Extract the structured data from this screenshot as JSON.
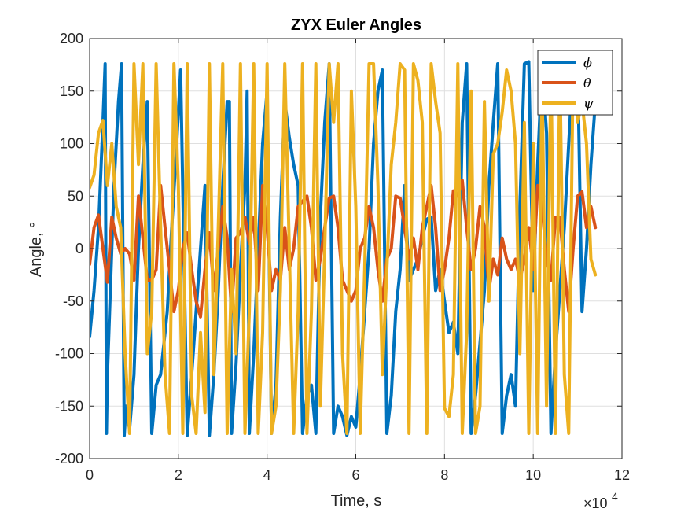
{
  "chart_data": {
    "type": "line",
    "title": "ZYX Euler Angles",
    "xlabel": "Time, s",
    "ylabel": "Angle, °",
    "x_exponent_base": "×10",
    "x_exponent_power": "4",
    "xlim": [
      0,
      12
    ],
    "ylim": [
      -200,
      200
    ],
    "xticks": [
      0,
      2,
      4,
      6,
      8,
      10,
      12
    ],
    "yticks": [
      -200,
      -150,
      -100,
      -50,
      0,
      50,
      100,
      150,
      200
    ],
    "grid": true,
    "legend_position": "top-right",
    "series": [
      {
        "name": "ϕ",
        "color": "#0072BD",
        "x": [
          0,
          0.1,
          0.2,
          0.3,
          0.35,
          0.38,
          0.4,
          0.55,
          0.65,
          0.72,
          0.78,
          0.82,
          0.9,
          1.0,
          1.05,
          1.1,
          1.2,
          1.3,
          1.4,
          1.5,
          1.6,
          1.75,
          1.85,
          1.95,
          2.05,
          2.2,
          2.3,
          2.4,
          2.5,
          2.6,
          2.7,
          2.8,
          2.9,
          3.0,
          3.1,
          3.15,
          3.2,
          3.3,
          3.4,
          3.5,
          3.55,
          3.6,
          3.7,
          3.8,
          3.9,
          4.0,
          4.1,
          4.2,
          4.3,
          4.4,
          4.5,
          4.6,
          4.7,
          4.8,
          4.9,
          5.0,
          5.1,
          5.2,
          5.3,
          5.4,
          5.5,
          5.6,
          5.7,
          5.8,
          5.9,
          6.0,
          6.1,
          6.2,
          6.3,
          6.4,
          6.5,
          6.6,
          6.7,
          6.8,
          6.9,
          7.0,
          7.1,
          7.2,
          7.3,
          7.4,
          7.5,
          7.6,
          7.7,
          7.8,
          7.9,
          8.0,
          8.1,
          8.2,
          8.3,
          8.4,
          8.5,
          8.6,
          8.7,
          8.8,
          8.9,
          9.0,
          9.1,
          9.2,
          9.3,
          9.4,
          9.5,
          9.6,
          9.7,
          9.8,
          9.9,
          10.0,
          10.1,
          10.2,
          10.3,
          10.4,
          10.5,
          10.6,
          10.7,
          10.8,
          10.9,
          11.0,
          11.1,
          11.2,
          11.3,
          11.4
        ],
        "y": [
          -84,
          -40,
          20,
          120,
          176,
          -176,
          -120,
          60,
          140,
          176,
          -178,
          -150,
          -172,
          -120,
          -60,
          0,
          80,
          140,
          -176,
          -130,
          -120,
          -60,
          20,
          90,
          170,
          -178,
          -120,
          -60,
          0,
          60,
          -178,
          -120,
          -40,
          60,
          140,
          140,
          -176,
          -110,
          -20,
          60,
          150,
          -176,
          -100,
          0,
          100,
          150,
          -176,
          -130,
          30,
          140,
          106,
          80,
          60,
          -176,
          -140,
          -130,
          -176,
          30,
          120,
          176,
          -176,
          -150,
          -160,
          -178,
          -160,
          -170,
          -120,
          -60,
          0,
          100,
          150,
          170,
          -176,
          -140,
          -60,
          -20,
          60,
          -30,
          -20,
          -10,
          10,
          28,
          30,
          -40,
          -20,
          -50,
          -80,
          -70,
          -100,
          120,
          176,
          -176,
          -140,
          -90,
          -40,
          60,
          120,
          176,
          -176,
          -140,
          -120,
          -150,
          40,
          176,
          178,
          -40,
          80,
          176,
          110,
          -176,
          -100,
          -40,
          20,
          100,
          176,
          178,
          -60,
          0,
          80,
          140
        ]
      },
      {
        "name": "θ",
        "color": "#D95319",
        "x": [
          0,
          0.1,
          0.2,
          0.3,
          0.4,
          0.5,
          0.6,
          0.7,
          0.8,
          0.9,
          1.0,
          1.1,
          1.2,
          1.3,
          1.4,
          1.5,
          1.6,
          1.7,
          1.8,
          1.9,
          2.0,
          2.1,
          2.2,
          2.3,
          2.4,
          2.5,
          2.6,
          2.7,
          2.8,
          2.9,
          3.0,
          3.1,
          3.2,
          3.3,
          3.4,
          3.5,
          3.6,
          3.7,
          3.8,
          3.9,
          4.0,
          4.1,
          4.2,
          4.3,
          4.4,
          4.5,
          4.6,
          4.7,
          4.8,
          4.9,
          5.0,
          5.1,
          5.2,
          5.3,
          5.4,
          5.5,
          5.6,
          5.7,
          5.8,
          5.9,
          6.0,
          6.1,
          6.2,
          6.3,
          6.4,
          6.5,
          6.6,
          6.7,
          6.8,
          6.9,
          7.0,
          7.1,
          7.2,
          7.3,
          7.4,
          7.5,
          7.6,
          7.7,
          7.8,
          7.9,
          8.0,
          8.1,
          8.2,
          8.3,
          8.4,
          8.5,
          8.6,
          8.7,
          8.8,
          8.9,
          9.0,
          9.1,
          9.2,
          9.3,
          9.4,
          9.5,
          9.6,
          9.7,
          9.8,
          9.9,
          10.0,
          10.1,
          10.2,
          10.3,
          10.4,
          10.5,
          10.6,
          10.7,
          10.8,
          10.9,
          11.0,
          11.1,
          11.2,
          11.3,
          11.4
        ],
        "y": [
          -15,
          20,
          32,
          0,
          -32,
          30,
          10,
          -5,
          0,
          -5,
          -30,
          50,
          10,
          -30,
          -30,
          -20,
          60,
          20,
          -20,
          -60,
          -40,
          0,
          15,
          -20,
          -50,
          -65,
          -20,
          15,
          -40,
          0,
          40,
          10,
          -60,
          10,
          15,
          30,
          5,
          30,
          -40,
          60,
          20,
          -40,
          -20,
          -30,
          20,
          -20,
          0,
          40,
          45,
          50,
          20,
          -30,
          -10,
          20,
          48,
          50,
          20,
          -30,
          -40,
          -50,
          -40,
          0,
          10,
          40,
          20,
          -20,
          -50,
          -10,
          0,
          50,
          48,
          20,
          -10,
          10,
          -20,
          20,
          40,
          60,
          20,
          -40,
          -20,
          10,
          55,
          50,
          65,
          20,
          -20,
          0,
          40,
          20,
          -40,
          -10,
          -25,
          10,
          -10,
          -20,
          -10,
          -30,
          -10,
          20,
          -20,
          60,
          40,
          -10,
          -30,
          30,
          30,
          -20,
          -60,
          0,
          50,
          54,
          20,
          40,
          20
        ]
      },
      {
        "name": "ψ",
        "color": "#EDB120",
        "x": [
          0,
          0.1,
          0.2,
          0.3,
          0.4,
          0.5,
          0.6,
          0.7,
          0.8,
          0.9,
          1.0,
          1.1,
          1.2,
          1.3,
          1.4,
          1.5,
          1.6,
          1.7,
          1.8,
          1.9,
          2.0,
          2.1,
          2.2,
          2.3,
          2.4,
          2.5,
          2.6,
          2.7,
          2.8,
          2.9,
          3.0,
          3.1,
          3.2,
          3.3,
          3.4,
          3.5,
          3.6,
          3.7,
          3.8,
          3.9,
          4.0,
          4.1,
          4.2,
          4.3,
          4.4,
          4.5,
          4.6,
          4.7,
          4.8,
          4.9,
          5.0,
          5.1,
          5.2,
          5.3,
          5.4,
          5.5,
          5.6,
          5.7,
          5.8,
          5.9,
          6.0,
          6.1,
          6.2,
          6.3,
          6.4,
          6.5,
          6.6,
          6.7,
          6.8,
          6.9,
          7.0,
          7.1,
          7.2,
          7.3,
          7.4,
          7.5,
          7.6,
          7.7,
          7.8,
          7.9,
          8.0,
          8.1,
          8.2,
          8.3,
          8.4,
          8.5,
          8.6,
          8.7,
          8.8,
          8.9,
          9.0,
          9.1,
          9.2,
          9.3,
          9.4,
          9.5,
          9.6,
          9.7,
          9.8,
          9.9,
          10.0,
          10.1,
          10.2,
          10.3,
          10.4,
          10.5,
          10.6,
          10.7,
          10.8,
          10.9,
          11.0,
          11.1,
          11.2,
          11.3,
          11.4
        ],
        "y": [
          58,
          70,
          110,
          122,
          60,
          100,
          40,
          20,
          -100,
          -176,
          176,
          80,
          176,
          -100,
          -60,
          176,
          20,
          -120,
          -176,
          176,
          60,
          -176,
          176,
          -140,
          -176,
          -80,
          -156,
          176,
          -120,
          20,
          176,
          -176,
          -20,
          -100,
          176,
          -176,
          -60,
          176,
          -176,
          -80,
          176,
          -176,
          -150,
          -40,
          176,
          0,
          -176,
          -60,
          176,
          -176,
          -60,
          176,
          -150,
          0,
          176,
          120,
          176,
          -100,
          -176,
          150,
          40,
          -176,
          -20,
          176,
          176,
          60,
          -120,
          -20,
          80,
          120,
          176,
          170,
          -176,
          176,
          160,
          120,
          -176,
          176,
          140,
          110,
          -152,
          -160,
          -120,
          176,
          -176,
          -80,
          150,
          -176,
          -150,
          140,
          -50,
          90,
          100,
          130,
          170,
          150,
          100,
          -100,
          120,
          -176,
          100,
          -176,
          160,
          -150,
          176,
          -176,
          176,
          -120,
          -176,
          176,
          120,
          140,
          100,
          -10,
          -25
        ]
      }
    ]
  }
}
